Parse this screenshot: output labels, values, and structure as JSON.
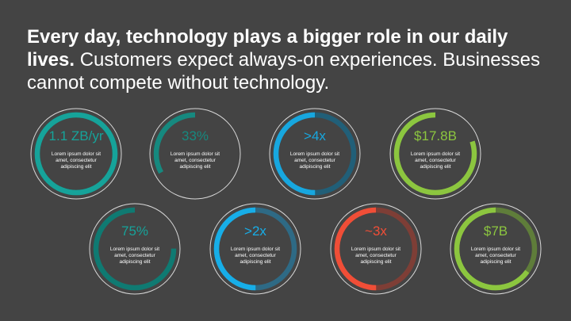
{
  "headline": {
    "bold": "Every day, technology plays a bigger role in our daily lives.",
    "regular": " Customers expect always-on experiences. Businesses cannot compete without technology."
  },
  "gauges": [
    {
      "value": "1.1 ZB/yr",
      "caption": "Lorem ipsum dolor sit amet, consectetur adipiscing elit",
      "fill": 1.0,
      "color": "#16a39a",
      "track": "#0f6f6a",
      "value_color": "#16a39a"
    },
    {
      "value": "33%",
      "caption": "Lorem ipsum dolor sit amet, consectetur adipiscing elit",
      "fill": 0.33,
      "color": "#16897f",
      "track": "",
      "value_color": "#16897f"
    },
    {
      "value": ">4x",
      "caption": "Lorem ipsum dolor sit amet, consectetur adipiscing elit",
      "fill": 0.5,
      "color": "#17a7df",
      "track": "#215f78",
      "value_color": "#17a7df"
    },
    {
      "value": "$17.8B",
      "caption": "Lorem ipsum dolor sit amet, consectetur adipiscing elit",
      "fill": 0.8,
      "color": "#8cc63f",
      "track": "",
      "value_color": "#8cc63f"
    },
    {
      "value": "75%",
      "caption": "Lorem ipsum dolor sit amet, consectetur adipiscing elit",
      "fill": 0.75,
      "color": "#0f7a72",
      "track": "",
      "value_color": "#16a39a"
    },
    {
      "value": ">2x",
      "caption": "Lorem ipsum dolor sit amet, consectetur adipiscing elit",
      "fill": 0.5,
      "color": "#17aee8",
      "track": "#2e6a85",
      "value_color": "#17aee8"
    },
    {
      "value": "~3x",
      "caption": "Lorem ipsum dolor sit amet, consectetur adipiscing elit",
      "fill": 0.5,
      "color": "#f04e37",
      "track": "#7e3e36",
      "value_color": "#f04e37"
    },
    {
      "value": "$7B",
      "caption": "Lorem ipsum dolor sit amet, consectetur adipiscing elit",
      "fill": 0.65,
      "color": "#8cc63f",
      "track": "#5f7d3a",
      "value_color": "#8cc63f"
    }
  ]
}
